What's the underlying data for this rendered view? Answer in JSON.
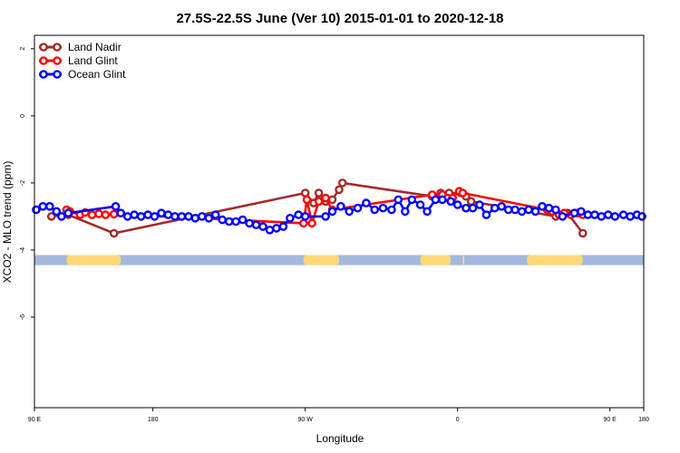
{
  "chart_data": {
    "type": "line",
    "title": "27.5S-22.5S June (Ver 10)   2015-01-01 to 2020-12-18",
    "xlabel": "Longitude",
    "ylabel": "XCO2 - MLO trend (ppm)",
    "xlim": [
      90,
      450
    ],
    "ylim": [
      -8.7,
      2.4
    ],
    "x_ticks": [
      {
        "value": 90,
        "label": "90 E"
      },
      {
        "value": 160,
        "label": "180"
      },
      {
        "value": 250,
        "label": "90 W"
      },
      {
        "value": 340,
        "label": "0"
      },
      {
        "value": 430,
        "label": "90 E"
      },
      {
        "value": 450,
        "label": "180"
      }
    ],
    "y_ticks": [
      {
        "value": 2,
        "label": "2"
      },
      {
        "value": 0,
        "label": "0"
      },
      {
        "value": -2,
        "label": "-2"
      },
      {
        "value": -4,
        "label": "-4"
      },
      {
        "value": -6,
        "label": "-6"
      }
    ],
    "legend": {
      "position": "top-left",
      "entries": [
        {
          "name": "Land Nadir",
          "color": "#a52a2a"
        },
        {
          "name": "Land Glint",
          "color": "#ff0000"
        },
        {
          "name": "Ocean Glint",
          "color": "#0000ff"
        }
      ]
    },
    "colors": {
      "land_band": "#ffd977",
      "ocean_band": "#a3b8dc"
    },
    "land_ocean_band": {
      "y_range": [
        -4.45,
        -4.15
      ],
      "land_segments": [
        [
          109,
          141
        ],
        [
          249,
          270
        ],
        [
          318,
          336
        ],
        [
          343,
          344
        ],
        [
          381,
          414
        ]
      ]
    },
    "series": [
      {
        "name": "Land Nadir",
        "color": "#a52a2a",
        "points": [
          [
            100,
            -3.0
          ],
          [
            110,
            -2.95
          ],
          [
            137,
            -3.5
          ],
          [
            250,
            -2.3
          ],
          [
            255,
            -2.6
          ],
          [
            258,
            -2.3
          ],
          [
            262,
            -2.55
          ],
          [
            266,
            -2.5
          ],
          [
            270,
            -2.2
          ],
          [
            272,
            -2.0
          ],
          [
            325,
            -2.4
          ],
          [
            330,
            -2.3
          ],
          [
            335,
            -2.3
          ],
          [
            342,
            -2.3
          ],
          [
            345,
            -2.4
          ],
          [
            348,
            -2.55
          ],
          [
            398,
            -3.0
          ],
          [
            405,
            -2.9
          ],
          [
            414,
            -3.5
          ]
        ]
      },
      {
        "name": "Land Glint",
        "color": "#ff0000",
        "points": [
          [
            109,
            -2.8
          ],
          [
            111,
            -2.85
          ],
          [
            117,
            -2.95
          ],
          [
            120,
            -2.88
          ],
          [
            124,
            -2.95
          ],
          [
            128,
            -2.92
          ],
          [
            132,
            -2.95
          ],
          [
            137,
            -2.93
          ],
          [
            249,
            -3.2
          ],
          [
            251,
            -2.5
          ],
          [
            254,
            -3.2
          ],
          [
            258,
            -2.55
          ],
          [
            262,
            -2.45
          ],
          [
            266,
            -2.8
          ],
          [
            325,
            -2.35
          ],
          [
            328,
            -2.45
          ],
          [
            331,
            -2.35
          ],
          [
            334,
            -2.45
          ],
          [
            337,
            -2.45
          ],
          [
            341,
            -2.25
          ],
          [
            343,
            -2.3
          ],
          [
            393,
            -2.8
          ],
          [
            396,
            -2.85
          ],
          [
            400,
            -2.95
          ],
          [
            403,
            -2.9
          ],
          [
            407,
            -2.95
          ],
          [
            411,
            -2.9
          ],
          [
            414,
            -2.95
          ]
        ]
      },
      {
        "name": "Ocean Glint",
        "color": "#0000ff",
        "points": [
          [
            91,
            -2.8
          ],
          [
            95,
            -2.7
          ],
          [
            99,
            -2.7
          ],
          [
            103,
            -2.85
          ],
          [
            106,
            -3.0
          ],
          [
            110,
            -2.9
          ],
          [
            138,
            -2.7
          ],
          [
            141,
            -2.9
          ],
          [
            145,
            -3.0
          ],
          [
            149,
            -2.95
          ],
          [
            153,
            -3.0
          ],
          [
            157,
            -2.95
          ],
          [
            161,
            -3.0
          ],
          [
            165,
            -2.9
          ],
          [
            169,
            -2.95
          ],
          [
            173,
            -3.0
          ],
          [
            177,
            -3.0
          ],
          [
            181,
            -3.0
          ],
          [
            185,
            -3.05
          ],
          [
            189,
            -3.0
          ],
          [
            193,
            -3.05
          ],
          [
            197,
            -2.95
          ],
          [
            201,
            -3.1
          ],
          [
            205,
            -3.15
          ],
          [
            209,
            -3.15
          ],
          [
            213,
            -3.1
          ],
          [
            217,
            -3.2
          ],
          [
            221,
            -3.25
          ],
          [
            225,
            -3.3
          ],
          [
            229,
            -3.4
          ],
          [
            233,
            -3.35
          ],
          [
            237,
            -3.3
          ],
          [
            241,
            -3.05
          ],
          [
            246,
            -2.95
          ],
          [
            250,
            -3.0
          ],
          [
            262,
            -3.0
          ],
          [
            266,
            -2.85
          ],
          [
            271,
            -2.7
          ],
          [
            276,
            -2.85
          ],
          [
            281,
            -2.75
          ],
          [
            286,
            -2.6
          ],
          [
            291,
            -2.8
          ],
          [
            296,
            -2.75
          ],
          [
            301,
            -2.8
          ],
          [
            305,
            -2.5
          ],
          [
            309,
            -2.85
          ],
          [
            313,
            -2.5
          ],
          [
            318,
            -2.65
          ],
          [
            322,
            -2.85
          ],
          [
            327,
            -2.5
          ],
          [
            331,
            -2.5
          ],
          [
            336,
            -2.55
          ],
          [
            340,
            -2.65
          ],
          [
            345,
            -2.75
          ],
          [
            349,
            -2.75
          ],
          [
            353,
            -2.65
          ],
          [
            357,
            -2.95
          ],
          [
            362,
            -2.75
          ],
          [
            366,
            -2.7
          ],
          [
            370,
            -2.8
          ],
          [
            374,
            -2.8
          ],
          [
            378,
            -2.85
          ],
          [
            382,
            -2.8
          ],
          [
            386,
            -2.85
          ],
          [
            390,
            -2.7
          ],
          [
            394,
            -2.75
          ],
          [
            398,
            -2.8
          ],
          [
            402,
            -3.0
          ],
          [
            409,
            -2.9
          ],
          [
            413,
            -2.85
          ],
          [
            417,
            -2.95
          ],
          [
            421,
            -2.95
          ],
          [
            425,
            -3.0
          ],
          [
            429,
            -2.95
          ],
          [
            433,
            -3.0
          ],
          [
            438,
            -2.95
          ],
          [
            442,
            -3.0
          ],
          [
            446,
            -2.95
          ],
          [
            449,
            -3.0
          ]
        ]
      }
    ]
  }
}
